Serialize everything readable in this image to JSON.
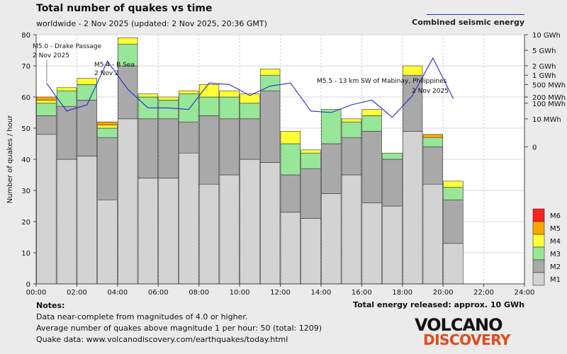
{
  "header": {
    "title": "Total number of quakes vs time",
    "subtitle": "worldwide -  2 Nov 2025 (updated: 2 Nov 2025, 20:36 GMT)",
    "energy_legend": "Combined seismic energy"
  },
  "footer": {
    "notes_title": "Notes:",
    "notes": [
      "Data near-complete from magnitudes of 4.0 or higher.",
      "Average number of quakes above magnitude 1 per hour: 50 (total: 1209)",
      "Quake data: www.volcanodiscovery.com/earthquakes/today.html"
    ],
    "total_energy": "Total energy released: approx. 10 GWh",
    "logo_top": "VOLCANO",
    "logo_bottom": "DISCOVERY"
  },
  "colors": {
    "M1": "#d3d3d3",
    "M2": "#a9a9a9",
    "M3": "#98e698",
    "M4": "#ffff33",
    "M5": "#ffa500",
    "M6": "#ff2020",
    "energy_line": "#2a2ad0",
    "plot_background": "#ffffff"
  },
  "chart_data": {
    "type": "bar",
    "stacked": true,
    "ylabel": "Number of quakes / hour",
    "ylim": [
      0,
      80
    ],
    "y_ticks": [
      0,
      10,
      20,
      30,
      40,
      50,
      60,
      70,
      80
    ],
    "x_tick_labels": [
      "00:00",
      "02:00",
      "04:00",
      "06:00",
      "08:00",
      "10:00",
      "12:00",
      "14:00",
      "16:00",
      "18:00",
      "20:00",
      "22:00",
      "24:00"
    ],
    "hours": [
      0,
      1,
      2,
      3,
      4,
      5,
      6,
      7,
      8,
      9,
      10,
      11,
      12,
      13,
      14,
      15,
      16,
      17,
      18,
      19,
      20
    ],
    "series": [
      {
        "name": "M1",
        "values": [
          48,
          40,
          41,
          27,
          53,
          34,
          34,
          42,
          32,
          35,
          40,
          39,
          23,
          21,
          29,
          35,
          26,
          25,
          49,
          32,
          13
        ]
      },
      {
        "name": "M2",
        "values": [
          6,
          17,
          18,
          20,
          17,
          19,
          19,
          10,
          22,
          18,
          13,
          23,
          12,
          16,
          16,
          12,
          23,
          15,
          18,
          12,
          14
        ]
      },
      {
        "name": "M3",
        "values": [
          4,
          5,
          5,
          3,
          7,
          7,
          6,
          9,
          6,
          7,
          5,
          5,
          10,
          5,
          11,
          5,
          5,
          2,
          0,
          3,
          4
        ]
      },
      {
        "name": "M4",
        "values": [
          1,
          1,
          2,
          1,
          2,
          1,
          1,
          1,
          4,
          2,
          3,
          2,
          4,
          1,
          0,
          1,
          2,
          0,
          3,
          0,
          2
        ]
      },
      {
        "name": "M5",
        "values": [
          1,
          0,
          0,
          1,
          0,
          0,
          0,
          0,
          0,
          0,
          0,
          0,
          0,
          0,
          0,
          0,
          0,
          0,
          0,
          1,
          0
        ]
      },
      {
        "name": "M6",
        "values": [
          0,
          0,
          0,
          0,
          0,
          0,
          0,
          0,
          0,
          0,
          0,
          0,
          0,
          0,
          0,
          0,
          0,
          0,
          0,
          0,
          0
        ]
      }
    ],
    "energy_axis": {
      "labels": [
        "10 GWh",
        "5 GWh",
        "2 GWh",
        "1 GWh",
        "500 MWh",
        "200 MWh",
        "100 MWh",
        "10 MWh",
        "0"
      ],
      "positions": [
        80,
        75,
        70,
        67,
        64,
        60,
        58,
        53,
        44
      ]
    },
    "energy_line": {
      "name": "Combined seismic energy",
      "values": [
        64.5,
        55.5,
        57.5,
        71.5,
        62.5,
        56.5,
        56.5,
        56,
        64.5,
        64,
        60.5,
        63.5,
        64.5,
        55.5,
        55,
        57.5,
        59,
        53.5,
        60.5,
        72.5,
        59.5
      ]
    },
    "legend": [
      "M6",
      "M5",
      "M4",
      "M3",
      "M2",
      "M1"
    ],
    "annotations": [
      {
        "text": "M5.0 - Drake Passage",
        "line2": "2 Nov 2025",
        "hour": 0
      },
      {
        "text": "M5.4 - B   Sea",
        "line2": "2 Nov 2",
        "hour": 3
      },
      {
        "text": "M5.5 - 13 km SW of Mabinay, Philippines",
        "line2": "2 Nov 2025",
        "hour": 19
      }
    ]
  }
}
